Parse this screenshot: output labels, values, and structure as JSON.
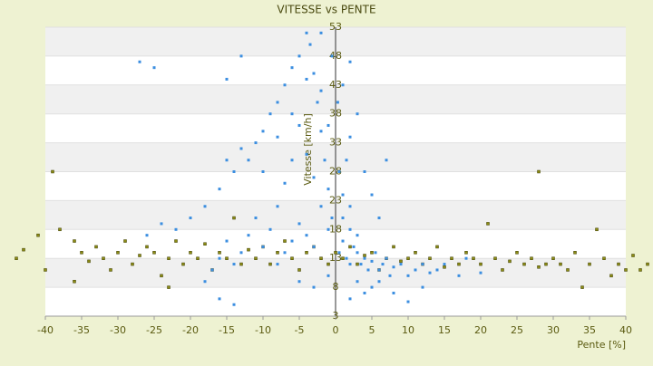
{
  "chart_data": {
    "type": "scatter",
    "title": "VITESSE vs PENTE",
    "x_label": "Pente [%]",
    "y_label": "Vitesse [km/h]",
    "xlim": [
      -40,
      40
    ],
    "ylim": [
      3,
      53
    ],
    "xticks": [
      -40,
      -35,
      -30,
      -25,
      -20,
      -15,
      -10,
      -5,
      0,
      5,
      10,
      15,
      20,
      25,
      30,
      35,
      40
    ],
    "yticks": [
      3,
      8,
      13,
      18,
      23,
      28,
      33,
      38,
      43,
      48,
      53
    ],
    "grid": true,
    "series": [
      {
        "color": "#8c8c14",
        "x": [
          -44,
          -43,
          -41,
          -40,
          -39,
          -38,
          -36,
          -35,
          -34,
          -33,
          -32,
          -31,
          -30,
          -29,
          -28,
          -27,
          -26,
          -25,
          -24,
          -23,
          -22,
          -21,
          -20,
          -19,
          -18,
          -17,
          -16,
          -15,
          -14,
          -13,
          -12,
          -11,
          -10,
          -9,
          -8,
          -7,
          -6,
          -5,
          -4,
          -3,
          -2,
          -1,
          0,
          1,
          2,
          3,
          4,
          5,
          6,
          7,
          8,
          9,
          10,
          11,
          12,
          13,
          14,
          15,
          16,
          17,
          18,
          19,
          20,
          21,
          22,
          23,
          24,
          25,
          26,
          27,
          28,
          29,
          30,
          31,
          32,
          33,
          35,
          36,
          37,
          38,
          39,
          40,
          41,
          42,
          43,
          28,
          34,
          -23,
          -36
        ],
        "values": [
          13,
          14.5,
          17,
          11,
          28,
          18,
          16,
          14,
          12.5,
          15,
          13,
          11,
          14,
          16,
          12,
          13.5,
          15,
          14,
          10,
          13,
          16,
          12,
          14,
          13,
          15.5,
          11,
          14,
          13,
          20,
          12,
          14.5,
          13,
          15,
          12,
          14,
          16,
          13,
          11,
          14,
          15,
          13,
          12,
          14,
          13,
          15,
          12,
          13.5,
          14,
          11,
          13,
          15,
          12.5,
          13,
          14,
          12,
          13,
          15,
          11.5,
          13,
          12,
          14,
          13,
          12,
          19,
          13,
          11,
          12.5,
          14,
          12,
          13,
          11.5,
          12,
          13,
          12,
          11,
          14,
          12,
          18,
          13,
          10,
          12,
          11,
          13.5,
          11,
          12,
          28,
          8,
          8,
          9
        ]
      },
      {
        "color": "#3b8ee0",
        "x": [
          0.5,
          1,
          1.5,
          2,
          2.5,
          3,
          3.5,
          4,
          4.5,
          5,
          5.5,
          6,
          6.5,
          7,
          7.5,
          8,
          9,
          10,
          11,
          12,
          13,
          14,
          1,
          2,
          3,
          1,
          2,
          0.5,
          1.5,
          2,
          3,
          4,
          5,
          6,
          7,
          1,
          2,
          0.3,
          5,
          4,
          6,
          3,
          2,
          10,
          8,
          12,
          15,
          17,
          20,
          18,
          -0.5,
          -1,
          -1.5,
          -2,
          -2.5,
          -3,
          -3.5,
          -4,
          -5,
          -6,
          -7,
          -8,
          -9,
          -10,
          -11,
          -12,
          -13,
          -14,
          -15,
          -16,
          -18,
          -20,
          -22,
          -24,
          -26,
          -27,
          -25,
          -13,
          -15,
          -1,
          -2,
          -3,
          -4,
          -5,
          -6,
          -7,
          -8,
          -9,
          -10,
          -11,
          -12,
          -13,
          -14,
          -15,
          -16,
          -17,
          -18,
          -16,
          -14,
          -3,
          -4,
          -5,
          -6,
          -7,
          -8,
          -2,
          -1,
          -0.5,
          -2,
          -4,
          -6,
          -8,
          -10,
          -3,
          -1,
          -5
        ],
        "values": [
          14,
          16,
          13,
          12,
          15,
          14,
          12,
          13,
          11,
          12.5,
          14,
          11,
          12,
          13,
          10,
          11.5,
          12,
          10,
          11,
          12,
          10.5,
          11,
          20,
          18,
          17,
          24,
          22,
          28,
          30,
          34,
          38,
          28,
          24,
          20,
          30,
          43,
          47,
          40,
          8,
          7,
          9,
          9,
          6,
          5.5,
          7,
          8,
          12,
          10,
          10.5,
          13,
          20,
          25,
          30,
          35,
          40,
          45,
          50,
          52,
          48,
          46,
          43,
          40,
          38,
          35,
          33,
          30,
          32,
          28,
          30,
          25,
          22,
          20,
          18,
          19,
          17,
          47,
          46,
          48,
          44,
          18,
          22,
          27,
          31,
          36,
          30,
          26,
          22,
          18,
          15,
          20,
          17,
          14,
          12,
          16,
          13,
          11,
          9,
          6,
          5,
          15,
          17,
          19,
          16,
          14,
          12,
          42,
          36,
          48,
          52,
          44,
          38,
          34,
          28,
          8,
          10,
          9
        ]
      }
    ]
  }
}
